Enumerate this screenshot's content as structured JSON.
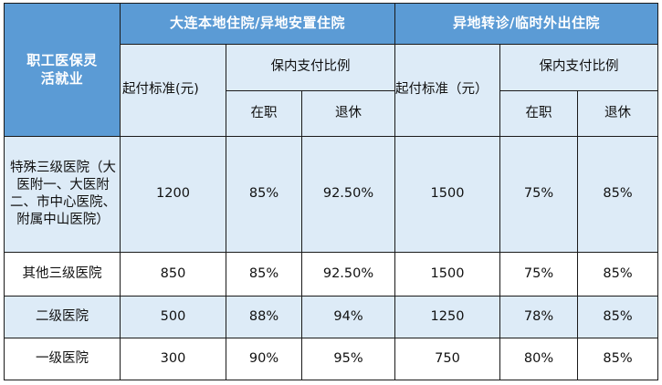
{
  "table": {
    "corner_label": "职工医保灵活就业",
    "groups": [
      {
        "title": "大连本地住院/异地安置住院",
        "base_label": "起付标准(元)",
        "ratio_label": "保内支付比例",
        "employed_label": "在职",
        "retired_label": "退休"
      },
      {
        "title": "异地转诊/临时外出住院",
        "base_label": "起付标准（元）",
        "ratio_label": "保内支付比例",
        "employed_label": "在职",
        "retired_label": "退休"
      }
    ],
    "rows": [
      {
        "hospital": "特殊三级医院（大医附一、大医附二、市中心医院、 附属中山医院）",
        "local": {
          "base": "1200",
          "employed": "85%",
          "retired": "92.50%"
        },
        "remote": {
          "base": "1500",
          "employed": "75%",
          "retired": "85%"
        }
      },
      {
        "hospital": "其他三级医院",
        "local": {
          "base": "850",
          "employed": "85%",
          "retired": "92.50%"
        },
        "remote": {
          "base": "1500",
          "employed": "75%",
          "retired": "85%"
        }
      },
      {
        "hospital": "二级医院",
        "local": {
          "base": "500",
          "employed": "88%",
          "retired": "94%"
        },
        "remote": {
          "base": "1250",
          "employed": "78%",
          "retired": "85%"
        }
      },
      {
        "hospital": "一级医院",
        "local": {
          "base": "300",
          "employed": "90%",
          "retired": "95%"
        },
        "remote": {
          "base": "750",
          "employed": "80%",
          "retired": "85%"
        }
      }
    ]
  }
}
